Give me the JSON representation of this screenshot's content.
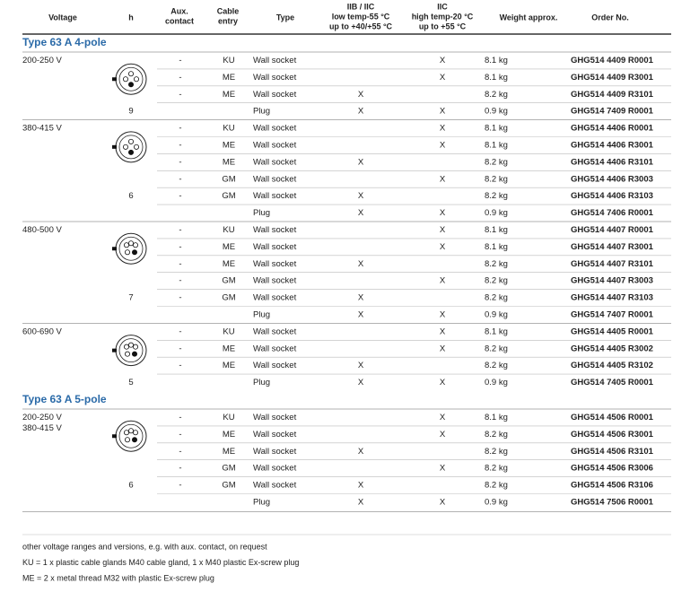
{
  "header": [
    {
      "key": "voltage",
      "lines": [
        "Voltage"
      ]
    },
    {
      "key": "h",
      "lines": [
        "h"
      ]
    },
    {
      "key": "aux",
      "lines": [
        "Aux.",
        "contact"
      ]
    },
    {
      "key": "entry",
      "lines": [
        "Cable",
        "entry"
      ]
    },
    {
      "key": "type",
      "lines": [
        "Type"
      ]
    },
    {
      "key": "low",
      "lines": [
        "IIB / IIC",
        "low temp-55 °C",
        "up to +40/+55 °C"
      ]
    },
    {
      "key": "high",
      "lines": [
        "IIC",
        "high temp-20 °C",
        "up to +55 °C"
      ]
    },
    {
      "key": "weight",
      "lines": [
        "Weight approx."
      ]
    },
    {
      "key": "order",
      "lines": [
        "Order No."
      ]
    }
  ],
  "sections": [
    {
      "title": "Type 63 A 4-pole",
      "groups": [
        {
          "voltage": [
            "200-250 V"
          ],
          "h": "9",
          "rows": [
            {
              "aux": "-",
              "entry": "KU",
              "type": "Wall socket",
              "high": "X",
              "weight": "8.1 kg",
              "order": "GHG514 4409 R0001"
            },
            {
              "aux": "-",
              "entry": "ME",
              "type": "Wall socket",
              "high": "X",
              "weight": "8.1 kg",
              "order": "GHG514 4409 R3001"
            },
            {
              "aux": "-",
              "entry": "ME",
              "type": "Wall socket",
              "low": "X",
              "weight": "8.2 kg",
              "order": "GHG514 4409 R3101"
            },
            {
              "type": "Plug",
              "low": "X",
              "high": "X",
              "weight": "0.9 kg",
              "order": "GHG514 7409 R0001"
            }
          ]
        },
        {
          "voltage": [
            "380-415 V"
          ],
          "h": "6",
          "rows": [
            {
              "aux": "-",
              "entry": "KU",
              "type": "Wall socket",
              "high": "X",
              "weight": "8.1 kg",
              "order": "GHG514 4406 R0001"
            },
            {
              "aux": "-",
              "entry": "ME",
              "type": "Wall socket",
              "high": "X",
              "weight": "8.1 kg",
              "order": "GHG514 4406 R3001"
            },
            {
              "aux": "-",
              "entry": "ME",
              "type": "Wall socket",
              "low": "X",
              "weight": "8.2 kg",
              "order": "GHG514 4406 R3101"
            },
            {
              "aux": "-",
              "entry": "GM",
              "type": "Wall socket",
              "high": "X",
              "weight": "8.2 kg",
              "order": "GHG514 4406 R3003"
            },
            {
              "aux": "-",
              "entry": "GM",
              "type": "Wall socket",
              "low": "X",
              "weight": "8.2 kg",
              "order": "GHG514 4406 R3103"
            },
            {
              "type": "Plug",
              "low": "X",
              "high": "X",
              "weight": "0.9 kg",
              "order": "GHG514 7406 R0001"
            }
          ]
        },
        {
          "voltage": [
            "480-500 V"
          ],
          "h": "7",
          "rows": [
            {
              "aux": "-",
              "entry": "KU",
              "type": "Wall socket",
              "high": "X",
              "weight": "8.1 kg",
              "order": "GHG514 4407 R0001"
            },
            {
              "aux": "-",
              "entry": "ME",
              "type": "Wall socket",
              "high": "X",
              "weight": "8.1 kg",
              "order": "GHG514 4407 R3001"
            },
            {
              "aux": "-",
              "entry": "ME",
              "type": "Wall socket",
              "low": "X",
              "weight": "8.2 kg",
              "order": "GHG514 4407 R3101"
            },
            {
              "aux": "-",
              "entry": "GM",
              "type": "Wall socket",
              "high": "X",
              "weight": "8.2 kg",
              "order": "GHG514 4407 R3003"
            },
            {
              "aux": "-",
              "entry": "GM",
              "type": "Wall socket",
              "low": "X",
              "weight": "8.2 kg",
              "order": "GHG514 4407 R3103"
            },
            {
              "type": "Plug",
              "low": "X",
              "high": "X",
              "weight": "0.9 kg",
              "order": "GHG514 7407 R0001"
            }
          ]
        },
        {
          "voltage": [
            "600-690 V"
          ],
          "h": "5",
          "rows": [
            {
              "aux": "-",
              "entry": "KU",
              "type": "Wall socket",
              "high": "X",
              "weight": "8.1 kg",
              "order": "GHG514 4405 R0001"
            },
            {
              "aux": "-",
              "entry": "ME",
              "type": "Wall socket",
              "high": "X",
              "weight": "8.2 kg",
              "order": "GHG514 4405 R3002"
            },
            {
              "aux": "-",
              "entry": "ME",
              "type": "Wall socket",
              "low": "X",
              "weight": "8.2 kg",
              "order": "GHG514 4405 R3102"
            },
            {
              "type": "Plug",
              "low": "X",
              "high": "X",
              "weight": "0.9 kg",
              "order": "GHG514 7405 R0001"
            }
          ]
        }
      ]
    },
    {
      "title": "Type 63 A 5-pole",
      "groups": [
        {
          "voltage": [
            "200-250 V",
            "380-415 V"
          ],
          "h": "6",
          "rows": [
            {
              "aux": "-",
              "entry": "KU",
              "type": "Wall socket",
              "high": "X",
              "weight": "8.1 kg",
              "order": "GHG514 4506 R0001"
            },
            {
              "aux": "-",
              "entry": "ME",
              "type": "Wall socket",
              "high": "X",
              "weight": "8.2 kg",
              "order": "GHG514 4506 R3001"
            },
            {
              "aux": "-",
              "entry": "ME",
              "type": "Wall socket",
              "low": "X",
              "weight": "8.2 kg",
              "order": "GHG514 4506 R3101"
            },
            {
              "aux": "-",
              "entry": "GM",
              "type": "Wall socket",
              "high": "X",
              "weight": "8.2 kg",
              "order": "GHG514 4506 R3006"
            },
            {
              "aux": "-",
              "entry": "GM",
              "type": "Wall socket",
              "low": "X",
              "weight": "8.2 kg",
              "order": "GHG514 4506 R3106"
            },
            {
              "type": "Plug",
              "low": "X",
              "high": "X",
              "weight": "0.9 kg",
              "order": "GHG514 7506 R0001"
            }
          ]
        }
      ]
    }
  ],
  "footnotes": [
    "other voltage ranges and versions, e.g. with aux. contact, on request",
    "KU = 1 x plastic cable glands M40 cable gland, 1 x M40 plastic Ex-screw plug",
    "ME = 2 x metal thread M32 with plastic Ex-screw plug"
  ]
}
